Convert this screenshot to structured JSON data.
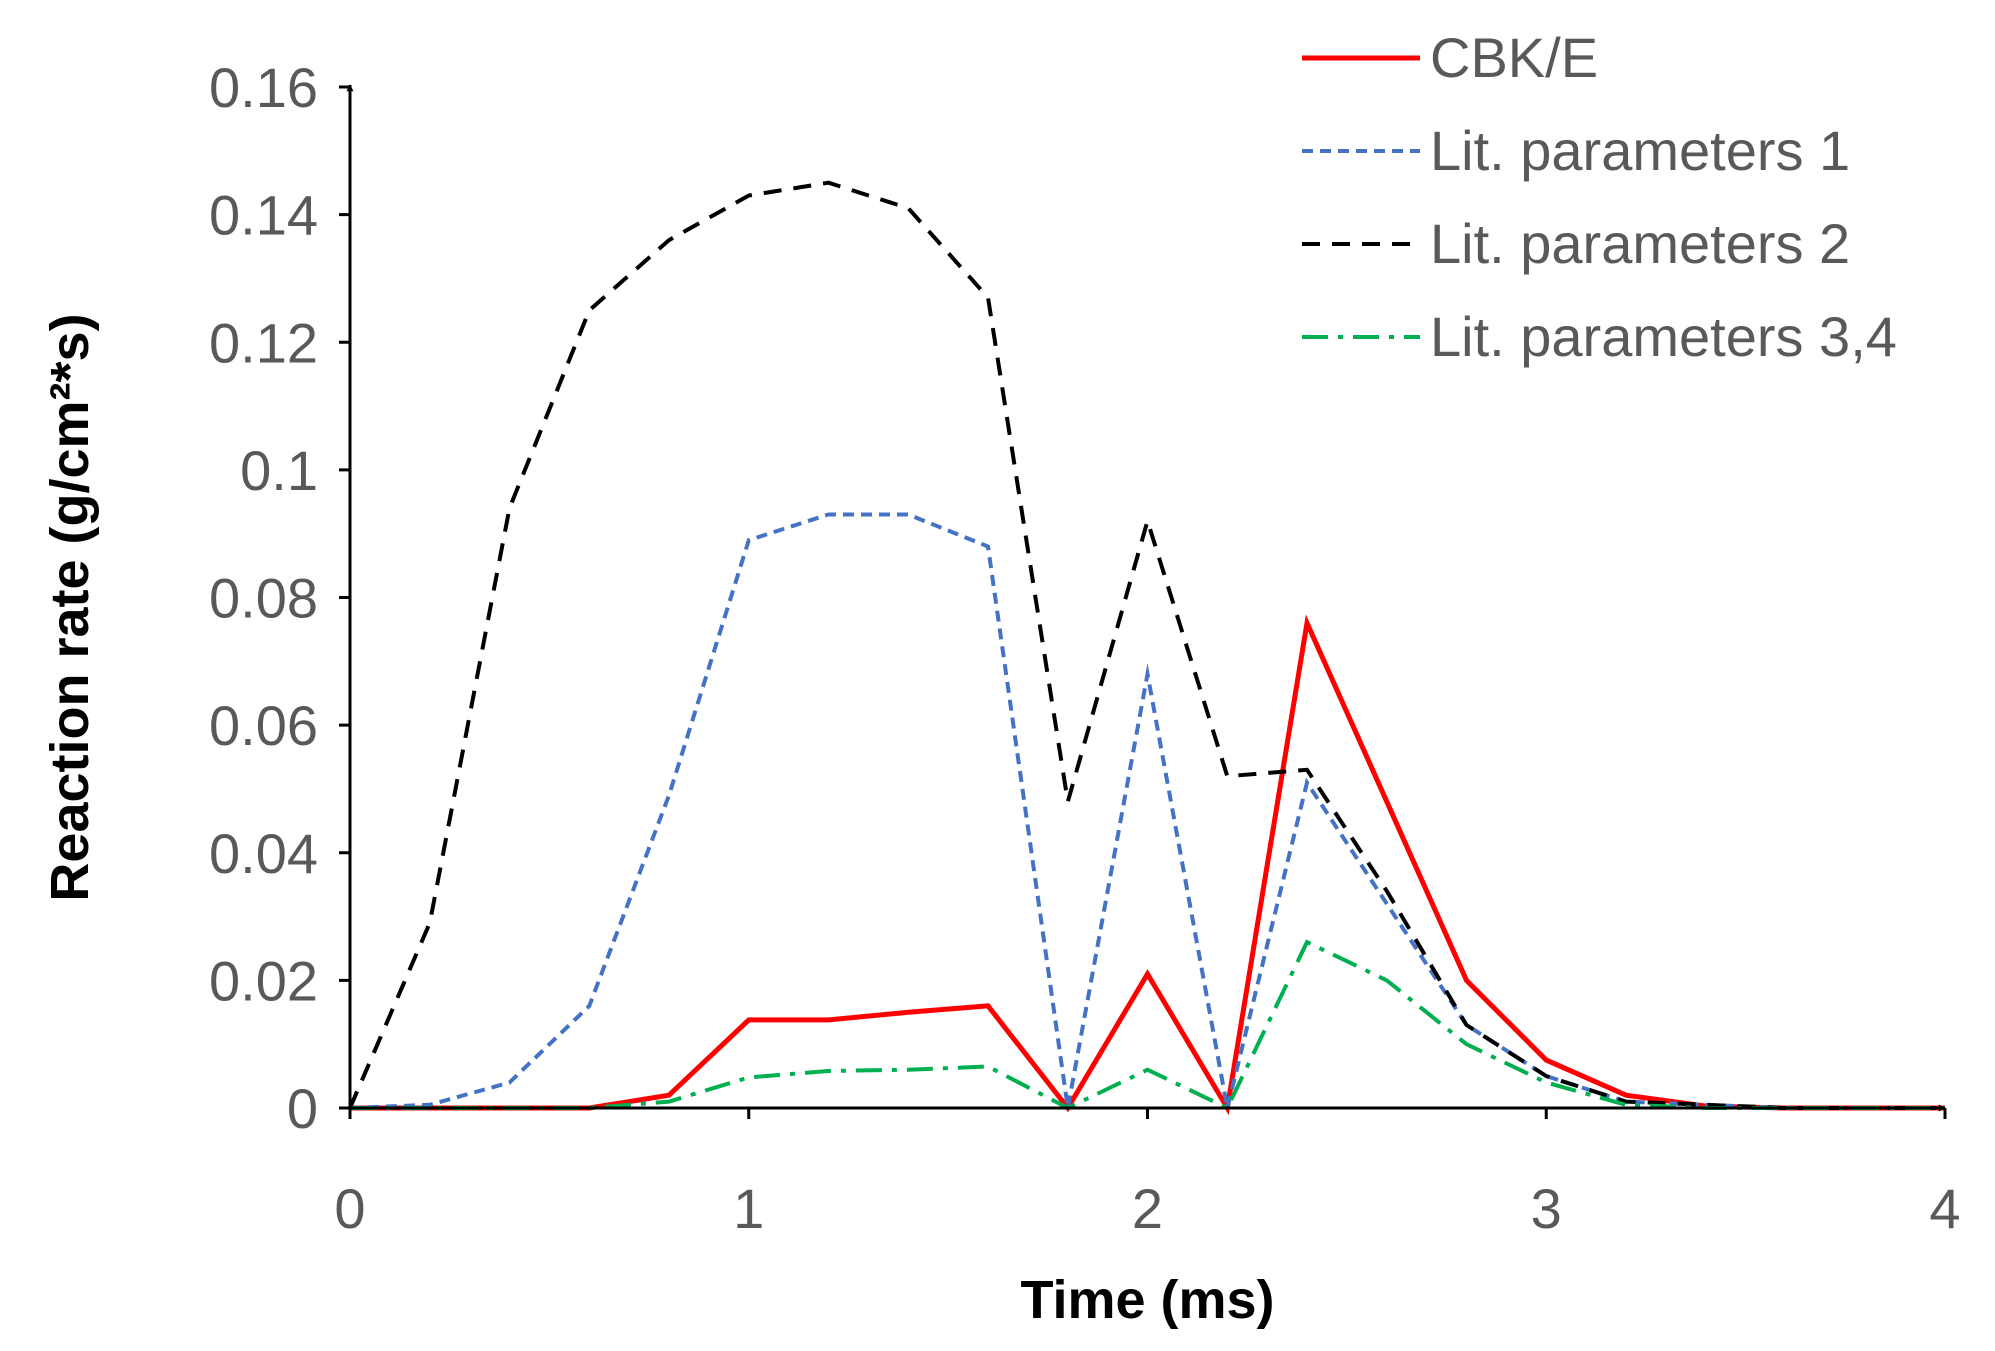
{
  "chart_data": {
    "type": "line",
    "title": "",
    "xlabel": "Time (ms)",
    "ylabel": "Reaction rate (g/cm²*s)",
    "xlim": [
      0,
      4
    ],
    "ylim": [
      0,
      0.16
    ],
    "x_ticks": [
      "0",
      "1",
      "2",
      "3",
      "4"
    ],
    "y_ticks": [
      "0",
      "0.02",
      "0.04",
      "0.06",
      "0.08",
      "0.1",
      "0.12",
      "0.14",
      "0.16"
    ],
    "grid": false,
    "legend_position": "top-right",
    "series": [
      {
        "name": "CBK/E",
        "color": "#ff0000",
        "style": "solid",
        "x": [
          0,
          0.2,
          0.4,
          0.6,
          0.8,
          1.0,
          1.2,
          1.4,
          1.6,
          1.8,
          2.0,
          2.2,
          2.4,
          2.6,
          2.8,
          3.0,
          3.2,
          3.4,
          3.6,
          3.8,
          4.0
        ],
        "y": [
          0,
          0,
          0,
          0,
          0.002,
          0.0138,
          0.0138,
          0.015,
          0.016,
          0,
          0.021,
          0,
          0.076,
          0.048,
          0.02,
          0.0075,
          0.002,
          0.0003,
          0,
          0,
          0
        ]
      },
      {
        "name": "Lit. parameters 1",
        "color": "#4472c4",
        "style": "dotted",
        "x": [
          0,
          0.2,
          0.4,
          0.6,
          0.8,
          1.0,
          1.2,
          1.4,
          1.6,
          1.8,
          2.0,
          2.2,
          2.4,
          2.6,
          2.8,
          3.0,
          3.2,
          3.4,
          3.6,
          3.8,
          4.0
        ],
        "y": [
          0,
          0.0005,
          0.004,
          0.016,
          0.049,
          0.089,
          0.093,
          0.093,
          0.088,
          0,
          0.068,
          0,
          0.051,
          0.032,
          0.013,
          0.005,
          0.001,
          0.0005,
          0,
          0,
          0
        ]
      },
      {
        "name": "Lit. parameters 2",
        "color": "#000000",
        "style": "dashed",
        "x": [
          0,
          0.2,
          0.4,
          0.6,
          0.8,
          1.0,
          1.2,
          1.4,
          1.6,
          1.8,
          2.0,
          2.2,
          2.4,
          2.6,
          2.8,
          3.0,
          3.2,
          3.4,
          3.6,
          3.8,
          4.0
        ],
        "y": [
          0,
          0.029,
          0.094,
          0.125,
          0.136,
          0.143,
          0.145,
          0.141,
          0.127,
          0.048,
          0.092,
          0.052,
          0.053,
          0.034,
          0.013,
          0.005,
          0.001,
          0.0005,
          0,
          0,
          0
        ]
      },
      {
        "name": "Lit. parameters 3,4",
        "color": "#00b050",
        "style": "dashdot",
        "x": [
          0,
          0.2,
          0.4,
          0.6,
          0.8,
          1.0,
          1.2,
          1.4,
          1.6,
          1.8,
          2.0,
          2.2,
          2.4,
          2.6,
          2.8,
          3.0,
          3.2,
          3.4,
          3.6,
          3.8,
          4.0
        ],
        "y": [
          0,
          0,
          0,
          0,
          0.001,
          0.0048,
          0.0058,
          0.006,
          0.0065,
          0,
          0.006,
          0,
          0.026,
          0.02,
          0.01,
          0.004,
          0.0005,
          0,
          0,
          0,
          0
        ]
      }
    ]
  }
}
